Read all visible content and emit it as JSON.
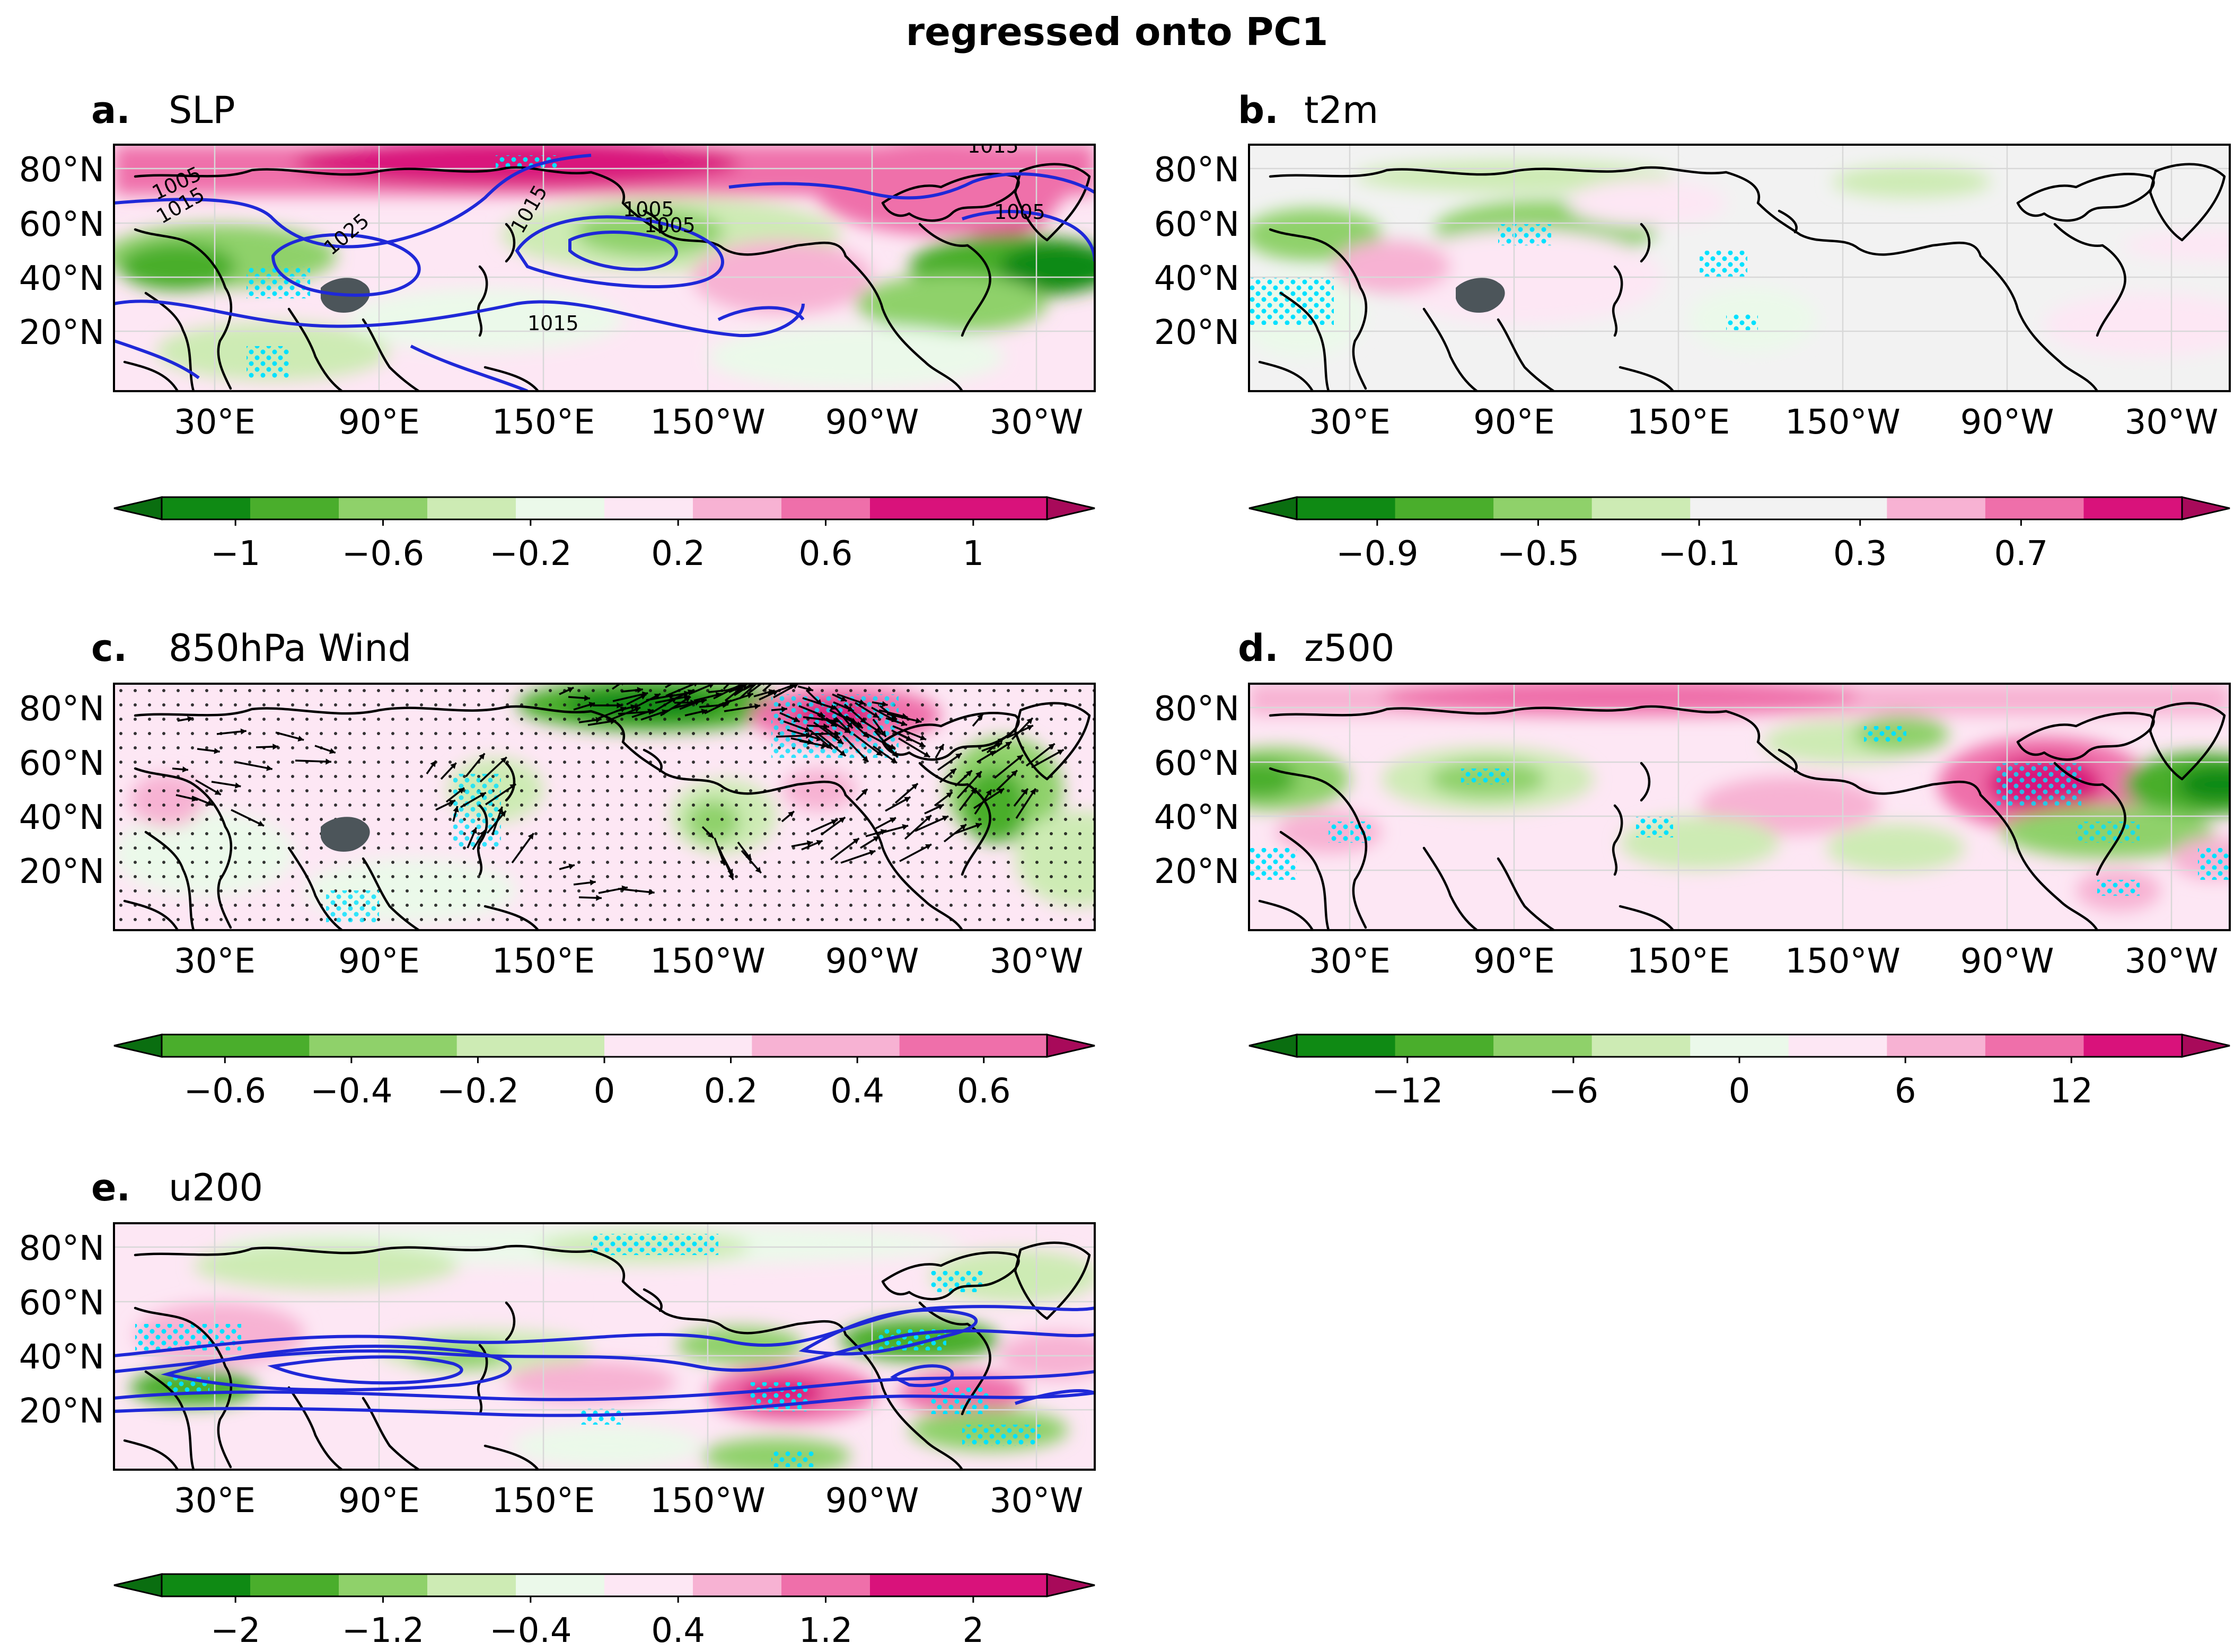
{
  "title": "regressed onto PC1",
  "lat_ticks": [
    "80°N",
    "60°N",
    "40°N",
    "20°N"
  ],
  "lon_ticks": [
    "30°E",
    "90°E",
    "150°E",
    "150°W",
    "90°W",
    "30°W"
  ],
  "colors": {
    "green": [
      "#0f8a14",
      "#4aae2c",
      "#8fd16a",
      "#cdebb4",
      "#ebf9ea"
    ],
    "pink": [
      "#fde7f4",
      "#f7b2d3",
      "#ef6faa",
      "#d9127b"
    ],
    "ext_green": "#0a6e10",
    "ext_pink": "#a80a5a",
    "neutral": "#f2f2f2",
    "contour": "#1f28d8",
    "stipple": "#00e1ff",
    "plateau": "#4c555a"
  },
  "panels": [
    {
      "id": "a",
      "letter": "a.",
      "variable": "SLP",
      "colorbar": {
        "ticks": [
          "−1",
          "−0.6",
          "−0.2",
          "0.2",
          "0.6",
          "1"
        ]
      },
      "contour_labels": [
        "1015",
        "1005",
        "1025",
        "1015",
        "1005",
        "1015",
        "1005",
        "1015",
        "1005"
      ]
    },
    {
      "id": "b",
      "letter": "b.",
      "variable": "t2m",
      "colorbar": {
        "ticks": [
          "−0.9",
          "−0.5",
          "−0.1",
          "0.3",
          "0.7"
        ]
      }
    },
    {
      "id": "c",
      "letter": "c.",
      "variable": "850hPa Wind",
      "colorbar": {
        "ticks": [
          "−0.6",
          "−0.4",
          "−0.2",
          "0",
          "0.2",
          "0.4",
          "0.6"
        ]
      }
    },
    {
      "id": "d",
      "letter": "d.",
      "variable": "z500",
      "colorbar": {
        "ticks": [
          "−12",
          "−6",
          "0",
          "6",
          "12"
        ]
      }
    },
    {
      "id": "e",
      "letter": "e.",
      "variable": "u200",
      "colorbar": {
        "ticks": [
          "−2",
          "−1.2",
          "−0.4",
          "0.4",
          "1.2",
          "2"
        ]
      }
    }
  ],
  "chart_data": [
    {
      "type": "heatmap",
      "panel": "a",
      "title": "SLP",
      "colorbar_range": [
        -1.2,
        1.2
      ],
      "colorbar_ticks": [
        -1,
        -0.6,
        -0.2,
        0.2,
        0.6,
        1
      ],
      "contour_labels_hpa": [
        1005,
        1015,
        1025
      ],
      "xticks": [
        "30°E",
        "90°E",
        "150°E",
        "150°W",
        "90°W",
        "30°W"
      ],
      "yticks": [
        "20°N",
        "40°N",
        "60°N",
        "80°N"
      ]
    },
    {
      "type": "heatmap",
      "panel": "b",
      "title": "t2m",
      "colorbar_range": [
        -1.1,
        1.1
      ],
      "colorbar_ticks": [
        -0.9,
        -0.5,
        -0.1,
        0.3,
        0.7
      ]
    },
    {
      "type": "heatmap",
      "panel": "c",
      "title": "850hPa Wind",
      "colorbar_range": [
        -0.7,
        0.7
      ],
      "colorbar_ticks": [
        -0.6,
        -0.4,
        -0.2,
        0,
        0.2,
        0.4,
        0.6
      ],
      "overlay": "wind vectors"
    },
    {
      "type": "heatmap",
      "panel": "d",
      "title": "z500",
      "colorbar_range": [
        -16,
        16
      ],
      "colorbar_ticks": [
        -12,
        -6,
        0,
        6,
        12
      ]
    },
    {
      "type": "heatmap",
      "panel": "e",
      "title": "u200",
      "colorbar_range": [
        -2.4,
        2.4
      ],
      "colorbar_ticks": [
        -2,
        -1.2,
        -0.4,
        0.4,
        1.2,
        2
      ],
      "overlay": "climatological jet contours"
    }
  ]
}
